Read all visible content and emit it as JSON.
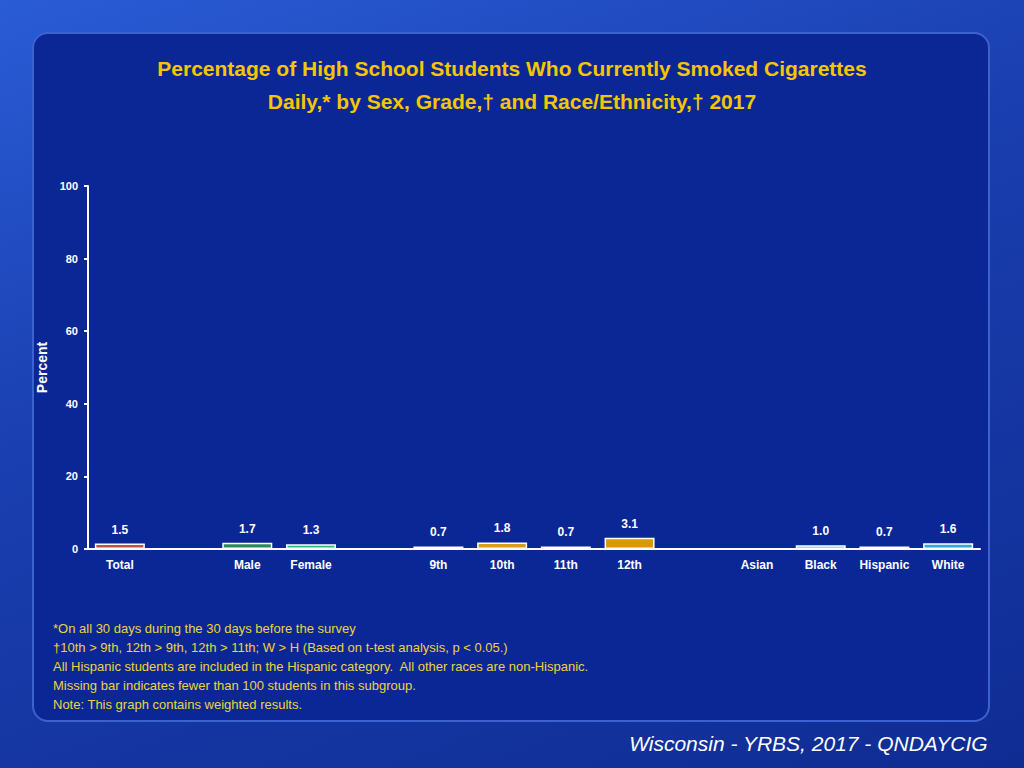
{
  "chart_data": {
    "type": "bar",
    "title": "Percentage of High School Students Who Currently Smoked Cigarettes\nDaily,* by Sex, Grade,† and Race/Ethnicity,† 2017",
    "y_label": "Percent",
    "categories": [
      "Total",
      null,
      "Male",
      "Female",
      null,
      "9th",
      "10th",
      "11th",
      "12th",
      null,
      "Asian",
      "Black",
      "Hispanic",
      "White"
    ],
    "values": [
      1.5,
      null,
      1.7,
      1.3,
      null,
      0.7,
      1.8,
      0.7,
      3.1,
      null,
      null,
      1.0,
      0.7,
      1.6
    ],
    "value_labels": [
      "1.5",
      null,
      "1.7",
      "1.3",
      null,
      "0.7",
      "1.8",
      "0.7",
      "3.1",
      null,
      null,
      "1.0",
      "0.7",
      "1.6"
    ],
    "colors": [
      "#c0504d",
      null,
      "#2e8b57",
      "#3cb371",
      null,
      "#e8e8e8",
      "#d4a017",
      "#f0f0f0",
      "#d49a00",
      null,
      null,
      "#4fb3e8",
      "#87ceeb",
      "#29a9e0"
    ],
    "ylim": [
      0,
      100
    ],
    "yticks": [
      0,
      20,
      40,
      60,
      80,
      100
    ],
    "grid": false,
    "data_labels": true,
    "notes": [
      "*On all 30 days during the 30 days before the survey",
      "†10th > 9th, 12th > 9th, 12th > 11th; W > H (Based on t-test analysis, p < 0.05.)",
      "All Hispanic students are included in the Hispanic category.  All other races are non-Hispanic.",
      "Missing bar indicates fewer than 100 students in this subgroup.",
      "Note: This graph contains weighted results."
    ],
    "source": "Wisconsin - YRBS, 2017 - QNDAYCIG"
  }
}
